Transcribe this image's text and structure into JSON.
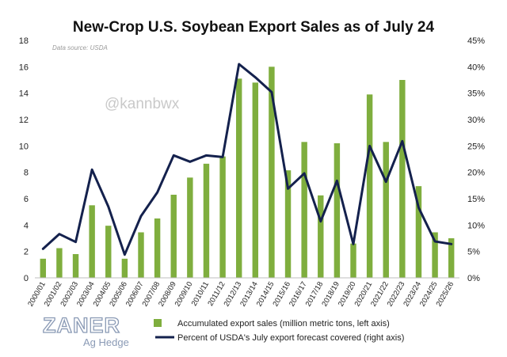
{
  "chart_data": {
    "type": "bar+line",
    "title": "New-Crop U.S. Soybean Export Sales as of July 24",
    "source_note": "Data source: USDA",
    "watermark": "@kannbwx",
    "categories": [
      "2000/01",
      "2001/02",
      "2002/03",
      "2003/04",
      "2004/05",
      "2005/06",
      "2006/07",
      "2007/08",
      "2008/09",
      "2009/10",
      "2010/11",
      "2011/12",
      "2012/13",
      "2013/14",
      "2014/15",
      "2015/16",
      "2016/17",
      "2017/18",
      "2018/19",
      "2019/20",
      "2020/21",
      "2021/22",
      "2022/23",
      "2023/24",
      "2024/25",
      "2025/26"
    ],
    "series": [
      {
        "name": "Accumulated export sales (million metric tons, left axis)",
        "type": "bar",
        "axis": "left",
        "color": "#7fae3e",
        "values": [
          1.45,
          2.25,
          1.8,
          5.5,
          3.95,
          1.45,
          3.45,
          4.5,
          6.3,
          7.6,
          8.65,
          9.2,
          15.1,
          14.8,
          16.0,
          8.15,
          10.3,
          6.25,
          10.2,
          2.6,
          13.9,
          10.3,
          15.0,
          6.95,
          3.45,
          3.0
        ]
      },
      {
        "name": "Percent of USDA's July export forecast covered (right axis)",
        "type": "line",
        "axis": "right",
        "color": "#14214d",
        "values": [
          5.5,
          8.3,
          6.8,
          20.5,
          13.5,
          4.4,
          11.7,
          16.2,
          23.2,
          22.0,
          23.2,
          22.9,
          40.5,
          38.0,
          35.2,
          16.9,
          19.8,
          10.7,
          18.4,
          6.4,
          25.0,
          18.2,
          25.9,
          13.3,
          6.9,
          6.4
        ]
      }
    ],
    "y_left": {
      "min": 0,
      "max": 18,
      "ticks": [
        "0",
        "2",
        "4",
        "6",
        "8",
        "10",
        "12",
        "14",
        "16",
        "18"
      ]
    },
    "y_right": {
      "min": 0,
      "max": 45,
      "ticks": [
        "0%",
        "5%",
        "10%",
        "15%",
        "20%",
        "25%",
        "30%",
        "35%",
        "40%",
        "45%"
      ]
    },
    "grid": false,
    "legend_position": "bottom-right"
  },
  "logo": {
    "main": "ZANER",
    "sub": "Ag Hedge"
  }
}
